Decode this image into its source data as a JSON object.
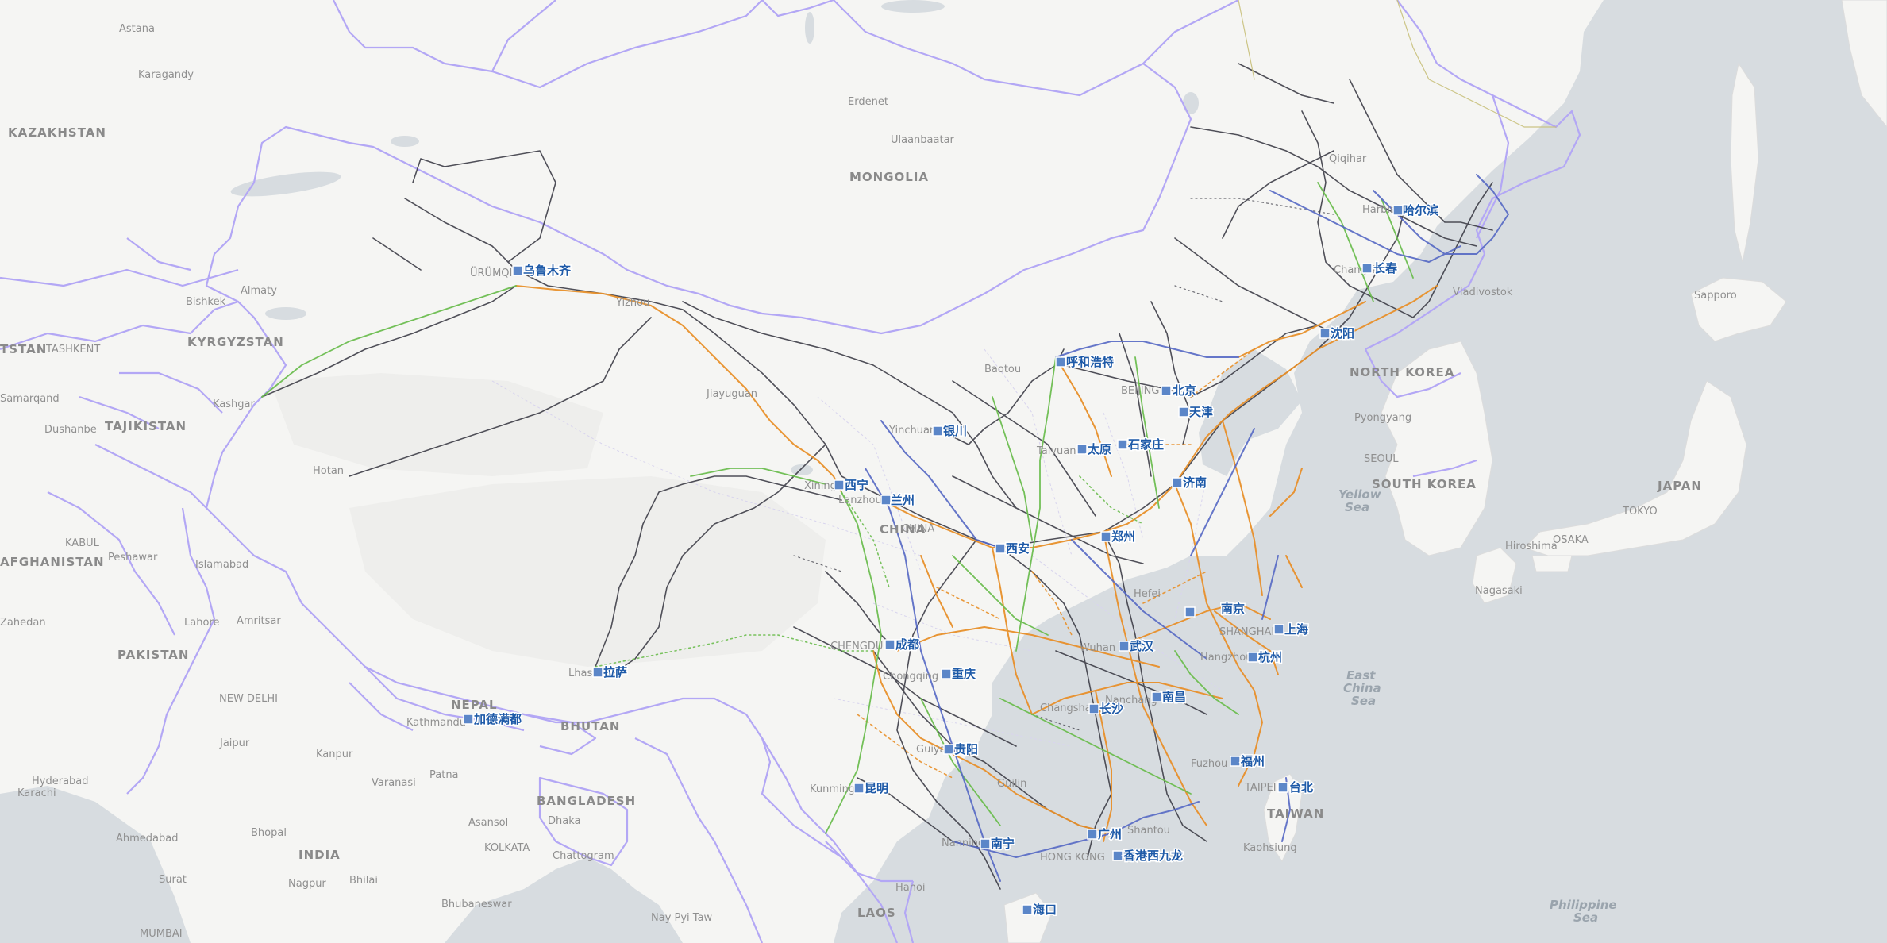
{
  "map": {
    "colors": {
      "land": "#f5f5f3",
      "water": "#d7dce0",
      "border": "#b3a7f5",
      "rail_existing": "#3e3e48",
      "rail_highspeed": "#e8902a",
      "rail_intercity": "#6cbd4f",
      "rail_conventional": "#5568c4",
      "station": "#5b86c8",
      "station_text": "#1e5aa8"
    },
    "stations": [
      {
        "name": "乌鲁木齐"
      },
      {
        "name": "哈尔滨"
      },
      {
        "name": "长春"
      },
      {
        "name": "沈阳"
      },
      {
        "name": "呼和浩特"
      },
      {
        "name": "北京"
      },
      {
        "name": "天津"
      },
      {
        "name": "银川"
      },
      {
        "name": "太原"
      },
      {
        "name": "石家庄"
      },
      {
        "name": "济南"
      },
      {
        "name": "西宁"
      },
      {
        "name": "兰州"
      },
      {
        "name": "郑州"
      },
      {
        "name": "西安"
      },
      {
        "name": "南京"
      },
      {
        "name": "上海"
      },
      {
        "name": "成都"
      },
      {
        "name": "武汉"
      },
      {
        "name": "杭州"
      },
      {
        "name": "重庆"
      },
      {
        "name": "拉萨"
      },
      {
        "name": "南昌"
      },
      {
        "name": "长沙"
      },
      {
        "name": "加德满都"
      },
      {
        "name": "贵阳"
      },
      {
        "name": "福州"
      },
      {
        "name": "台北"
      },
      {
        "name": "昆明"
      },
      {
        "name": "广州"
      },
      {
        "name": "南宁"
      },
      {
        "name": "香港西九龙"
      },
      {
        "name": "海口"
      }
    ],
    "countries": [
      "KAZAKHSTAN",
      "MONGOLIA",
      "KYRGYZSTAN",
      "TAJIKISTAN",
      "AFGHANISTAN",
      "PAKISTAN",
      "NEPAL",
      "BHUTAN",
      "BANGLADESH",
      "INDIA",
      "LAOS",
      "NORTH KOREA",
      "SOUTH KOREA",
      "JAPAN",
      "CHINA",
      "TAIWAN",
      "TSTAN"
    ],
    "cities": [
      "Astana",
      "Karagandy",
      "Erdenet",
      "Ulaanbaatar",
      "Almaty",
      "Bishkek",
      "TASHKENT",
      "Samarqand",
      "Dushanbe",
      "KABUL",
      "Peshawar",
      "Islamabad",
      "Lahore",
      "Amritsar",
      "NEW DELHI",
      "Jaipur",
      "Kanpur",
      "Patna",
      "Varanasi",
      "Hyderabad",
      "Karachi",
      "Ahmedabad",
      "Bhopal",
      "Nagpur",
      "Bhilai",
      "KOLKATA",
      "Asansol",
      "Dhaka",
      "Chattogram",
      "Surat",
      "Bhubaneswar",
      "MUMBAI",
      "Nay Pyi Taw",
      "Hanoi",
      "Vladivostok",
      "Sapporo",
      "Pyongyang",
      "SEOUL",
      "Hiroshima",
      "OSAKA",
      "TOKYO",
      "Nagasaki",
      "Kaohsiung",
      "Qiqihar",
      "Jiayuguan",
      "Yizhou",
      "Kashgar",
      "Hotan",
      "Kathmandu",
      "Zahedan"
    ],
    "seas": [
      {
        "lines": [
          "Yellow",
          "Sea"
        ]
      },
      {
        "lines": [
          "East",
          "China",
          "Sea"
        ]
      },
      {
        "lines": [
          "Philippine",
          "Sea"
        ]
      }
    ],
    "overlay_labels": [
      "ÜRÜMQI",
      "Harbin",
      "Changchun",
      "Baotou",
      "BEIJING",
      "Yinchuan",
      "Taiyuan",
      "Xining",
      "Lanzhou",
      "CHINA",
      "CHENGDU",
      "Chongqing",
      "Wuhan",
      "Hangzhou",
      "SHANGHAI",
      "Hefei",
      "Nanchang",
      "Changsha",
      "Guiyang",
      "Kunming",
      "Guilin",
      "Nanning",
      "Shantou",
      "Fuzhou",
      "TAIPEI",
      "HONG KONG",
      "Lhasa"
    ]
  }
}
